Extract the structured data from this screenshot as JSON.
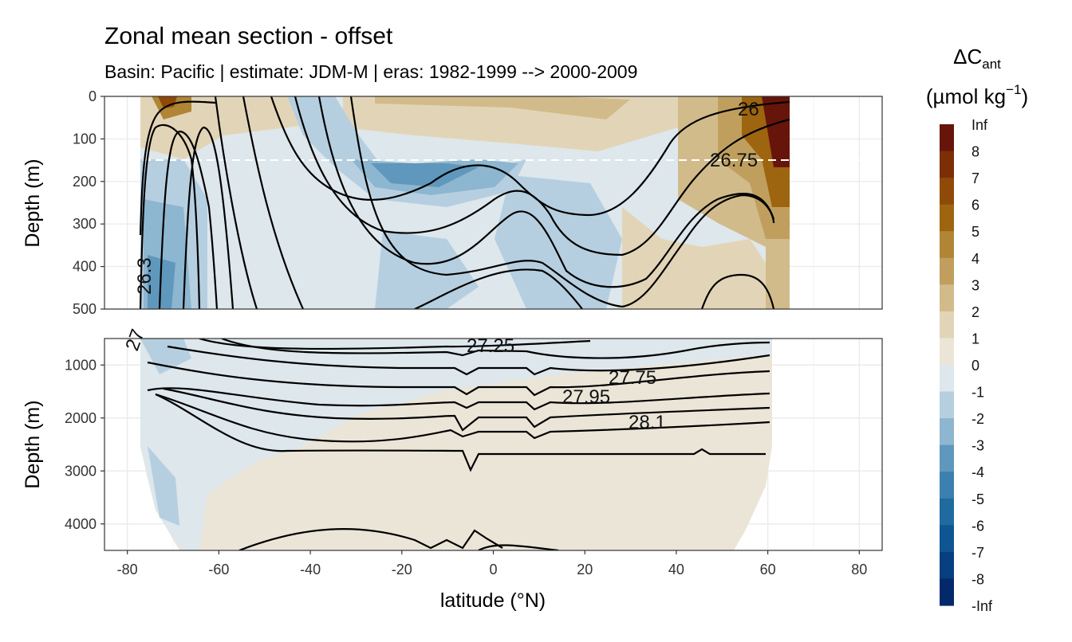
{
  "chart_data": {
    "type": "heatmap",
    "title": "Zonal mean section - offset",
    "subtitle": "Basin: Pacific | estimate: JDM-M | eras: 1982-1999 --> 2000-2009",
    "xlabel": "latitude (°N)",
    "ylabel": "Depth (m)",
    "x_ticks": [
      "-80",
      "-60",
      "-40",
      "-20",
      "0",
      "20",
      "40",
      "60",
      "80"
    ],
    "xlim": [
      -85,
      85
    ],
    "panels": [
      {
        "name": "upper",
        "ylim": [
          0,
          500
        ],
        "y_ticks": [
          "0",
          "100",
          "200",
          "300",
          "400",
          "500"
        ],
        "reversed": true
      },
      {
        "name": "lower",
        "ylim": [
          500,
          4500
        ],
        "y_ticks": [
          "1000",
          "2000",
          "3000",
          "4000"
        ],
        "reversed": true
      }
    ],
    "colorbar": {
      "title": "ΔCant",
      "title_main": "ΔC",
      "title_sub": "ant",
      "unit": "(µmol kg⁻¹)",
      "unit_main": "(µmol kg",
      "unit_sup": "−1",
      "unit_close": ")",
      "levels": [
        "Inf",
        "8",
        "7",
        "6",
        "5",
        "4",
        "3",
        "2",
        "1",
        "0",
        "-1",
        "-2",
        "-3",
        "-4",
        "-5",
        "-6",
        "-7",
        "-8",
        "-Inf"
      ],
      "colors": [
        "#67150a",
        "#7c2e05",
        "#8f4a08",
        "#9d650f",
        "#b08535",
        "#c09f5e",
        "#d2bb8a",
        "#e2d5b7",
        "#ebe5d8",
        "#dde7ec",
        "#b6cfe0",
        "#8db6d0",
        "#5f98bc",
        "#3b80ae",
        "#1f6ba0",
        "#0e5691",
        "#073f80",
        "#03296b"
      ]
    },
    "contour_labels": [
      "26",
      "26.75",
      "26.3",
      "27.25",
      "27.75",
      "27.95",
      "28.1",
      "27"
    ],
    "reference_line_depth": 150,
    "grid": true
  }
}
